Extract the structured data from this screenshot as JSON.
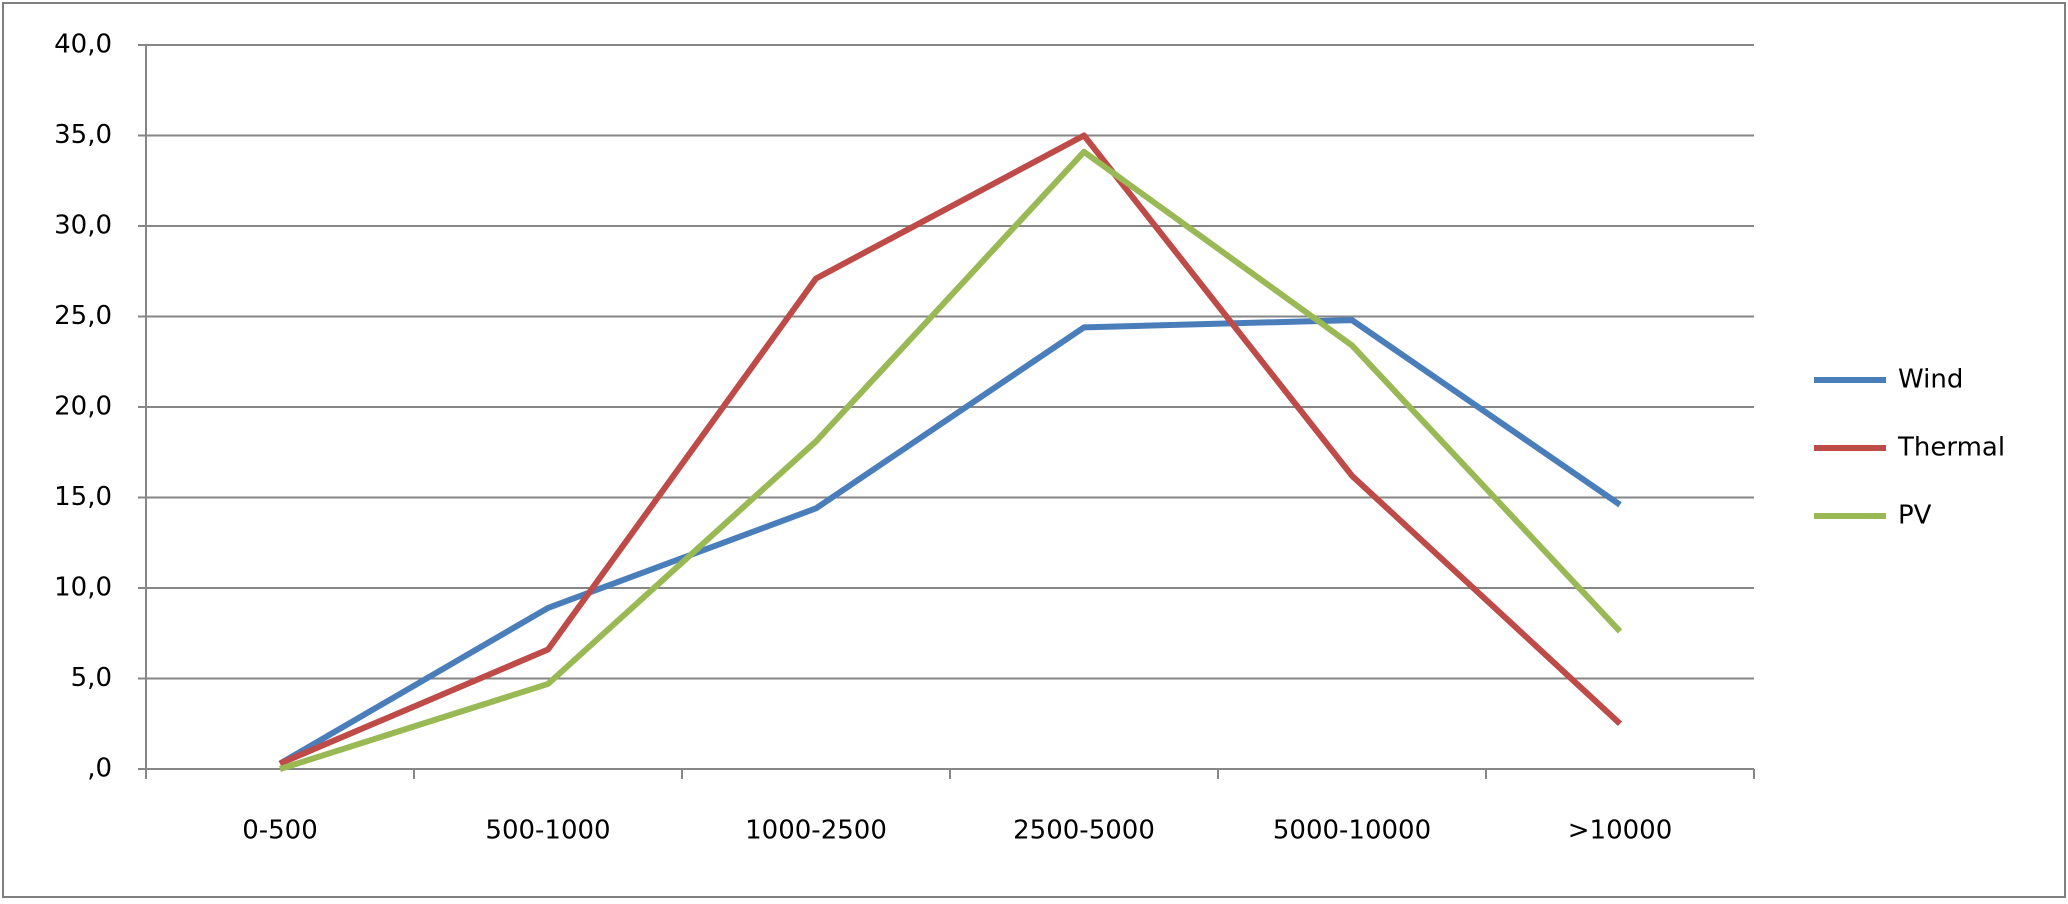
{
  "chart_data": {
    "type": "line",
    "categories": [
      "0-500",
      "500-1000",
      "1000-2500",
      "2500-5000",
      "5000-10000",
      ">10000"
    ],
    "series": [
      {
        "name": "Wind",
        "color": "#4a7ebb",
        "values": [
          0.3,
          8.9,
          14.4,
          24.4,
          24.8,
          14.6
        ]
      },
      {
        "name": "Thermal",
        "color": "#be4b48",
        "values": [
          0.3,
          6.6,
          27.1,
          35.0,
          16.2,
          2.5
        ]
      },
      {
        "name": "PV",
        "color": "#98b954",
        "values": [
          0.0,
          4.7,
          18.1,
          34.1,
          23.4,
          7.6
        ]
      }
    ],
    "ylim": [
      0,
      40
    ],
    "yticks": [
      {
        "value": 0,
        "label": ",0"
      },
      {
        "value": 5,
        "label": "5,0"
      },
      {
        "value": 10,
        "label": "10,0"
      },
      {
        "value": 15,
        "label": "15,0"
      },
      {
        "value": 20,
        "label": "20,0"
      },
      {
        "value": 25,
        "label": "25,0"
      },
      {
        "value": 30,
        "label": "30,0"
      },
      {
        "value": 35,
        "label": "35,0"
      },
      {
        "value": 40,
        "label": "40,0"
      }
    ],
    "grid": true,
    "legend": "right"
  }
}
